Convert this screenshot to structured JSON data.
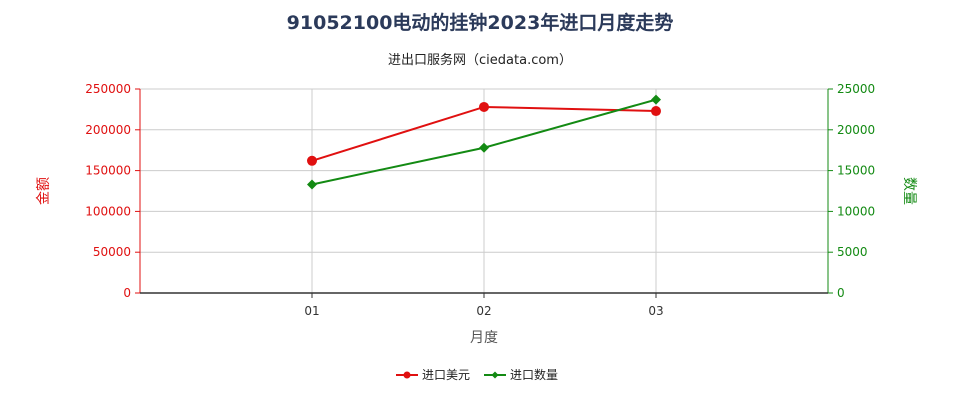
{
  "title": "91052100电动的挂钟2023年进口月度走势",
  "subtitle": "进出口服务网（ciedata.com）",
  "colors": {
    "amount": "#e01010",
    "quantity": "#138a13",
    "grid": "#cccccc",
    "axis": "#333333"
  },
  "chart_data": {
    "type": "line",
    "categories": [
      "01",
      "02",
      "03"
    ],
    "xlabel": "月度",
    "ylabel_left": "金额",
    "ylabel_right": "数量",
    "ylim_left": [
      0,
      250000
    ],
    "ylim_right": [
      0,
      25000
    ],
    "yticks_left": [
      "0",
      "50000",
      "100000",
      "150000",
      "200000",
      "250000"
    ],
    "yticks_right": [
      "0",
      "5000",
      "10000",
      "15000",
      "20000",
      "25000"
    ],
    "grid": true,
    "legend_position": "bottom",
    "series": [
      {
        "name": "进口美元",
        "axis": "left",
        "values": [
          162000,
          228000,
          223000
        ]
      },
      {
        "name": "进口数量",
        "axis": "right",
        "values": [
          13300,
          17800,
          23700
        ]
      }
    ]
  }
}
